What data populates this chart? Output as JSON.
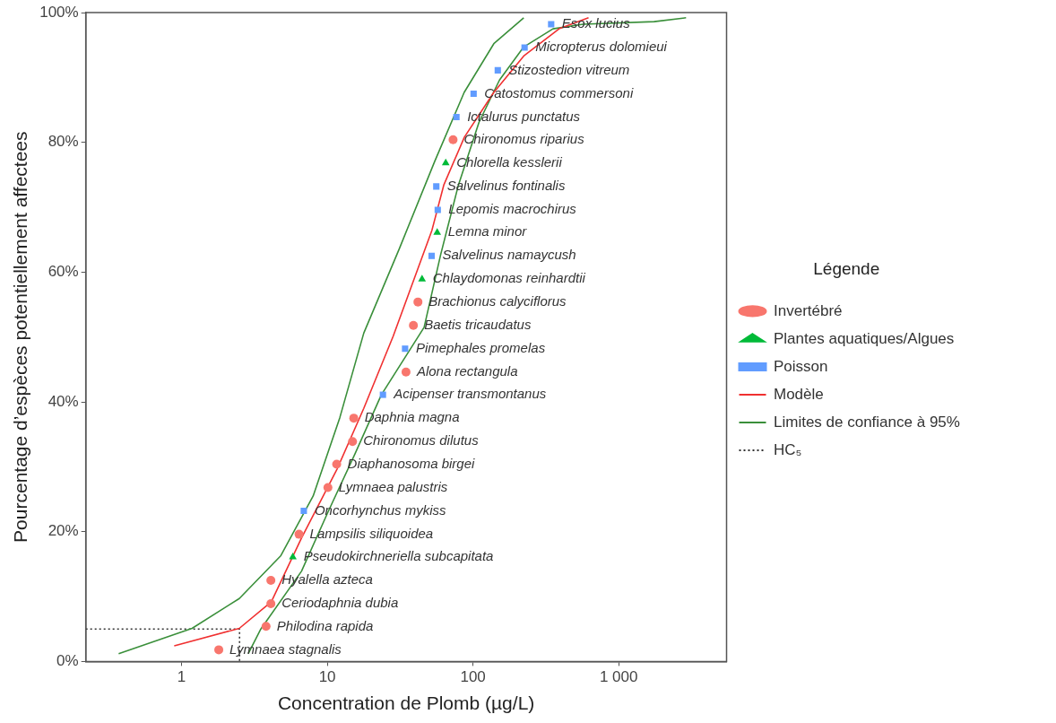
{
  "chart_data": {
    "type": "scatter",
    "xlabel": "Concentration de Plomb (µg/L)",
    "ylabel": "Pourcentage d’espèces potentiellement affectees",
    "legend_title": "Légende",
    "legend": "right",
    "log": "x",
    "xlim": [
      0.22,
      5500
    ],
    "xticks": [
      1,
      10,
      100,
      {
        "value": 1000,
        "label": "1 000"
      }
    ],
    "ylim": [
      0,
      100
    ],
    "yticks": [
      {
        "value": 0,
        "label": "0%"
      },
      {
        "value": 20,
        "label": "20%"
      },
      {
        "value": 40,
        "label": "40%"
      },
      {
        "value": 60,
        "label": "60%"
      },
      {
        "value": 80,
        "label": "80%"
      },
      {
        "value": 100,
        "label": "100%"
      }
    ],
    "series": [
      {
        "name": "Invertébré",
        "type": "scatter",
        "marker": "circle",
        "color": "#f8766d",
        "x": [
          1.8,
          3.8,
          4.1,
          4.1,
          6.4,
          10.1,
          11.6,
          14.9,
          15.2,
          34.7,
          39,
          41.9,
          73
        ],
        "values": [
          1.8,
          5.4,
          8.9,
          12.5,
          19.6,
          26.8,
          30.4,
          33.9,
          37.5,
          44.6,
          51.8,
          55.4,
          80.4
        ]
      },
      {
        "name": "Plantes aquatiques/Algues",
        "type": "scatter",
        "marker": "triangle",
        "color": "#00ba38",
        "x": [
          5.8,
          44.7,
          56.8,
          65
        ],
        "values": [
          16.1,
          58.9,
          66.1,
          76.8
        ]
      },
      {
        "name": "Poisson",
        "type": "scatter",
        "marker": "square",
        "color": "#619cff",
        "x": [
          6.9,
          24.1,
          34.2,
          52,
          57.3,
          56,
          77,
          101,
          148,
          226,
          344
        ],
        "values": [
          23.2,
          41.1,
          48.2,
          62.5,
          69.6,
          73.2,
          83.9,
          87.5,
          91.1,
          94.6,
          98.2
        ]
      },
      {
        "name": "Modèle",
        "type": "line",
        "marker": "none",
        "line_style": "solid",
        "color": "#f03030",
        "x": [
          0.89,
          2.49,
          4.13,
          6.65,
          11.7,
          17.8,
          28.3,
          52.2,
          63,
          87.3,
          139,
          223,
          390,
          621
        ],
        "values": [
          2.4,
          5.1,
          9.2,
          19,
          29.7,
          39,
          50.1,
          66.4,
          73.4,
          80.8,
          87.7,
          93.3,
          97.5,
          99.2
        ]
      },
      {
        "name": "Limites de confiance à 95%",
        "type": "line",
        "marker": "none",
        "line_style": "solid",
        "color": "#3a8f3a",
        "x": [
          0.37,
          1.18,
          2.49,
          4.8,
          8,
          12.2,
          17.8,
          31.2,
          54.7,
          87,
          139,
          223
        ],
        "values": [
          1.2,
          5.1,
          9.7,
          16.3,
          25.5,
          37.6,
          50.6,
          63.6,
          77.1,
          87.7,
          95.2,
          99.2
        ]
      },
      {
        "type": "line",
        "marker": "none",
        "line_style": "solid",
        "color": "#3a8f3a",
        "x": [
          2.87,
          3.5,
          6.65,
          10.1,
          15.5,
          23.5,
          46.2,
          60,
          79.4,
          110,
          152,
          223,
          354,
          570,
          1750,
          2900
        ],
        "values": [
          1.2,
          5,
          13.9,
          23,
          32,
          41.1,
          51.5,
          62.7,
          73.4,
          83.1,
          89.6,
          94.7,
          97.5,
          98.2,
          98.6,
          99.2
        ]
      },
      {
        "name": "HC₅",
        "type": "line",
        "marker": "none",
        "line_style": "dotted",
        "color": "#333333",
        "x": [
          0.22,
          2.5,
          2.5
        ],
        "values": [
          5,
          5,
          0
        ]
      }
    ],
    "annotations": [
      {
        "text": "Lymnaea stagnalis",
        "x": 1.8,
        "y": 1.8
      },
      {
        "text": "Philodina rapida",
        "x": 3.8,
        "y": 5.4
      },
      {
        "text": "Ceriodaphnia dubia",
        "x": 4.1,
        "y": 8.9
      },
      {
        "text": "Hyalella azteca",
        "x": 4.1,
        "y": 12.5
      },
      {
        "text": "Pseudokirchneriella subcapitata",
        "x": 5.8,
        "y": 16.1
      },
      {
        "text": "Lampsilis siliquoidea",
        "x": 6.4,
        "y": 19.6
      },
      {
        "text": "Oncorhynchus mykiss",
        "x": 6.9,
        "y": 23.2
      },
      {
        "text": "Lymnaea palustris",
        "x": 10.1,
        "y": 26.8
      },
      {
        "text": "Diaphanosoma birgei",
        "x": 11.6,
        "y": 30.4
      },
      {
        "text": "Chironomus dilutus",
        "x": 14.9,
        "y": 33.9
      },
      {
        "text": "Daphnia magna",
        "x": 15.2,
        "y": 37.5
      },
      {
        "text": "Acipenser transmontanus",
        "x": 24.1,
        "y": 41.1
      },
      {
        "text": "Alona rectangula",
        "x": 34.7,
        "y": 44.6
      },
      {
        "text": "Pimephales promelas",
        "x": 34.2,
        "y": 48.2
      },
      {
        "text": "Baetis tricaudatus",
        "x": 39,
        "y": 51.8
      },
      {
        "text": "Brachionus calyciflorus",
        "x": 41.9,
        "y": 55.4
      },
      {
        "text": "Chlaydomonas reinhardtii",
        "x": 44.7,
        "y": 58.9
      },
      {
        "text": "Salvelinus namaycush",
        "x": 52,
        "y": 62.5
      },
      {
        "text": "Lemna minor",
        "x": 56.8,
        "y": 66.1
      },
      {
        "text": "Lepomis macrochirus",
        "x": 57.3,
        "y": 69.6
      },
      {
        "text": "Salvelinus fontinalis",
        "x": 56,
        "y": 73.2
      },
      {
        "text": "Chlorella kesslerii",
        "x": 65,
        "y": 76.8
      },
      {
        "text": "Chironomus riparius",
        "x": 73,
        "y": 80.4
      },
      {
        "text": "Ictalurus punctatus",
        "x": 77,
        "y": 83.9
      },
      {
        "text": "Catostomus commersoni",
        "x": 101,
        "y": 87.5
      },
      {
        "text": "Stizostedion vitreum",
        "x": 148,
        "y": 91.1
      },
      {
        "text": "Micropterus dolomieui",
        "x": 226,
        "y": 94.6
      },
      {
        "text": "Esox lucius",
        "x": 344,
        "y": 98.2
      }
    ]
  }
}
